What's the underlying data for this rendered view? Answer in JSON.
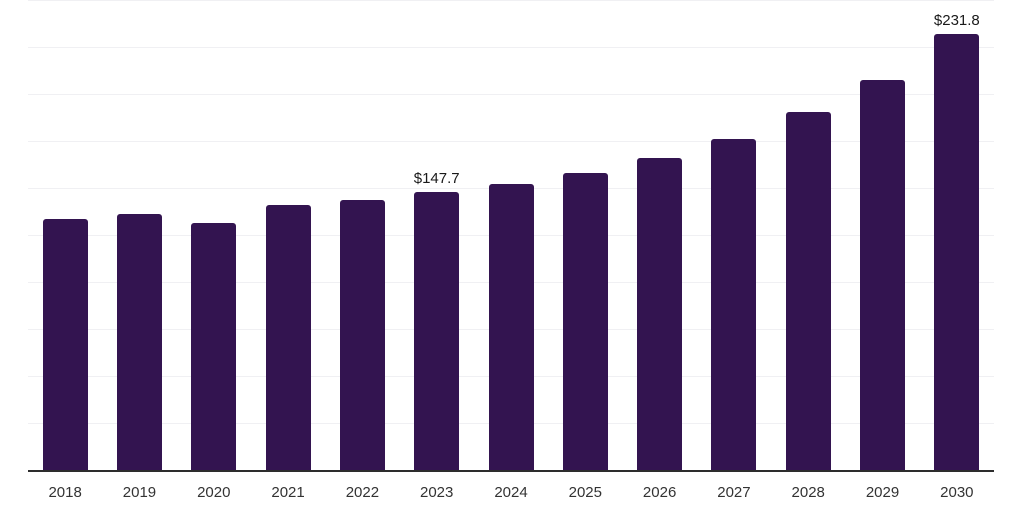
{
  "chart_data": {
    "type": "bar",
    "title": "",
    "xlabel": "",
    "ylabel": "",
    "categories": [
      "2018",
      "2019",
      "2020",
      "2021",
      "2022",
      "2023",
      "2024",
      "2025",
      "2026",
      "2027",
      "2028",
      "2029",
      "2030"
    ],
    "values": [
      133.4,
      136.2,
      131.6,
      141.0,
      143.7,
      147.7,
      152.2,
      158.1,
      166.1,
      176.2,
      190.2,
      207.4,
      231.8
    ],
    "labeled_points": [
      {
        "category": "2023",
        "label": "$147.7"
      },
      {
        "category": "2030",
        "label": "$231.8"
      }
    ],
    "ylim": [
      0,
      250
    ],
    "gridline_step": 25,
    "grid": true,
    "legend": false,
    "bar_color": "#331450",
    "gridline_color": "#f0f0f3",
    "axis_line_color": "#2d2d2d",
    "data_label_color": "#1a1a1a",
    "tick_label_color": "#333333",
    "background_color": "#ffffff"
  }
}
